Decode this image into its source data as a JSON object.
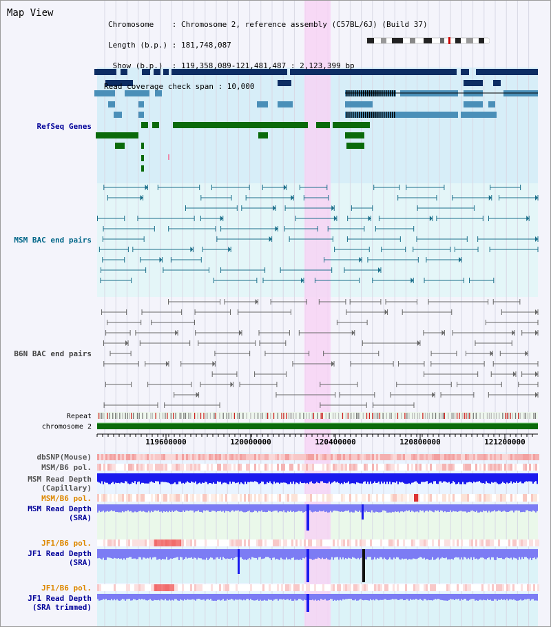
{
  "header": {
    "title": "Map View",
    "info_lines": [
      "Chromosome    : Chromosome 2, reference assembly (C57BL/6J) (Build 37)",
      "Length (b.p.) : 181,748,087",
      " Show (b.p.)  : 119,358,089-121,481,487 : 2,123,399 bp",
      "Read coverage check span : 10,000"
    ]
  },
  "tracks": {
    "refseq": {
      "label": "RefSeq Genes",
      "color": "#000099"
    },
    "msm_bac": {
      "label": "MSM BAC end pairs",
      "color": "#006688"
    },
    "b6n_bac": {
      "label": "B6N BAC end pairs",
      "color": "#444444"
    },
    "repeat": {
      "label": "Repeat"
    },
    "chromosome": {
      "label": "chromosome 2"
    },
    "dbsnp": {
      "label": "dbSNP(Mouse)"
    },
    "msm_b6_pol": {
      "label": "MSM/B6 pol."
    },
    "msm_depth_cap": {
      "label": "MSM Read Depth\n(Capillary)"
    },
    "msm_b6_pol2": {
      "label": "MSM/B6 pol.",
      "color": "#dd8800"
    },
    "msm_depth_sra": {
      "label": "MSM Read Depth\n(SRA)",
      "color": "#000099"
    },
    "jf1_b6_pol": {
      "label": "JF1/B6 pol.",
      "color": "#dd8800"
    },
    "jf1_depth_sra": {
      "label": "JF1 Read Depth\n(SRA)",
      "color": "#000099"
    },
    "jf1_b6_pol2": {
      "label": "JF1/B6 pol.",
      "color": "#dd8800"
    },
    "jf1_depth_trim": {
      "label": "JF1 Read Depth\n(SRA trimmed)",
      "color": "#000099"
    }
  },
  "axis": {
    "ticks": [
      "119600000",
      "120000000",
      "120400000",
      "120800000",
      "121200000"
    ]
  },
  "colors": {
    "highlight": "#f7d4f4",
    "refseq_bg": "#d7eef8",
    "refseq_dark": "#0d2d63",
    "refseq_mid": "#4a8fb8",
    "refseq_green": "#0a6a0a",
    "msm_bg": "#e4f6f8",
    "b6n_bg": "#f4f4fb",
    "chromosome_bar": "#0b6b0b",
    "depth_blue": "#0000ee",
    "depth_light": "#7c7cf4"
  }
}
